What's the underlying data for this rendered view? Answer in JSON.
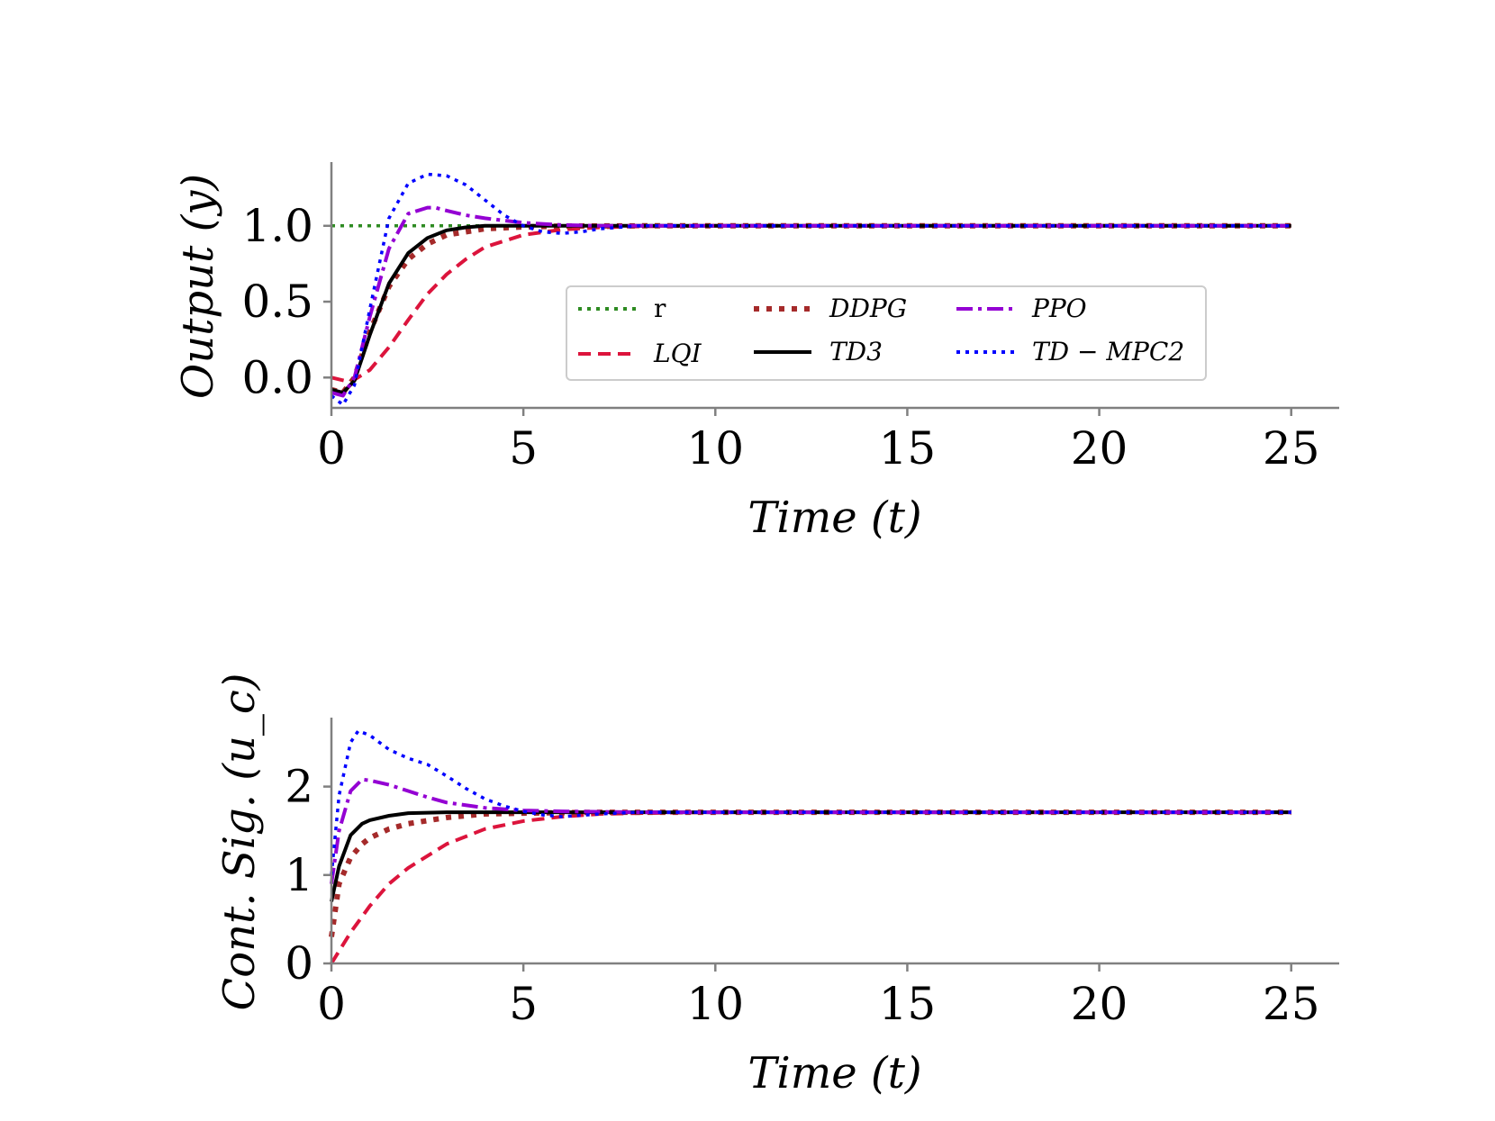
{
  "chart_data": [
    {
      "type": "line",
      "id": "output",
      "xlabel": "Time (t)",
      "ylabel": "Output (y)",
      "xlim": [
        0,
        26.25
      ],
      "ylim": [
        -0.2,
        1.42
      ],
      "xticks": [
        0,
        5,
        10,
        15,
        20,
        25
      ],
      "xtick_labels": [
        "0",
        "5",
        "10",
        "15",
        "20",
        "25"
      ],
      "yticks": [
        0.0,
        0.5,
        1.0
      ],
      "ytick_labels": [
        "0.0",
        "0.5",
        "1.0"
      ],
      "legend_position": "center-right",
      "legend_entries": [
        "r",
        "LQI",
        "DDPG",
        "TD3",
        "PPO",
        "TD − MPC2"
      ],
      "series": [
        {
          "name": "r",
          "color": "#2e8b22",
          "style": "dotted",
          "x": [
            0,
            25
          ],
          "y": [
            1.0,
            1.0
          ]
        },
        {
          "name": "LQI",
          "color": "#dc143c",
          "style": "dashed",
          "x": [
            0,
            0.5,
            1,
            1.5,
            2,
            2.5,
            3,
            3.5,
            4,
            5,
            6,
            7,
            8,
            10,
            15,
            25
          ],
          "y": [
            0.0,
            -0.03,
            0.05,
            0.2,
            0.38,
            0.55,
            0.68,
            0.78,
            0.86,
            0.94,
            0.975,
            0.99,
            0.996,
            1.0,
            1.0,
            1.0
          ]
        },
        {
          "name": "DDPG",
          "color": "#a52a2a",
          "style": "dotted-thick",
          "x": [
            0,
            0.3,
            0.6,
            1,
            1.5,
            2,
            2.5,
            3,
            4,
            5,
            6,
            8,
            10,
            25
          ],
          "y": [
            -0.08,
            -0.1,
            0.0,
            0.3,
            0.6,
            0.78,
            0.88,
            0.94,
            0.98,
            0.993,
            0.998,
            1.0,
            1.0,
            1.0
          ]
        },
        {
          "name": "TD3",
          "color": "#000000",
          "style": "solid",
          "x": [
            0,
            0.3,
            0.6,
            1,
            1.5,
            2,
            2.5,
            3,
            3.5,
            4,
            5,
            6,
            10,
            25
          ],
          "y": [
            -0.08,
            -0.1,
            -0.02,
            0.28,
            0.62,
            0.82,
            0.92,
            0.97,
            0.99,
            1.0,
            1.0,
            1.0,
            1.0,
            1.0
          ]
        },
        {
          "name": "PPO",
          "color": "#9400d3",
          "style": "dashdot",
          "x": [
            0,
            0.3,
            0.6,
            1,
            1.5,
            2,
            2.5,
            2.7,
            3,
            3.5,
            4,
            5,
            6,
            7,
            10,
            25
          ],
          "y": [
            -0.1,
            -0.12,
            0.0,
            0.4,
            0.85,
            1.08,
            1.12,
            1.12,
            1.1,
            1.07,
            1.05,
            1.02,
            1.005,
            1.0,
            1.0,
            1.0
          ]
        },
        {
          "name": "TD − MPC2",
          "color": "#0000ff",
          "style": "dotted",
          "x": [
            0,
            0.3,
            0.6,
            1,
            1.5,
            2,
            2.5,
            3,
            3.5,
            4,
            4.5,
            5,
            5.5,
            6,
            6.5,
            7,
            8,
            10,
            25
          ],
          "y": [
            -0.12,
            -0.18,
            -0.05,
            0.45,
            1.05,
            1.28,
            1.34,
            1.33,
            1.27,
            1.17,
            1.07,
            1.0,
            0.96,
            0.95,
            0.96,
            0.98,
            1.0,
            1.0,
            1.0
          ]
        }
      ]
    },
    {
      "type": "line",
      "id": "control",
      "xlabel": "Time (t)",
      "ylabel": "Cont. Sig. (u_c)",
      "xlim": [
        0,
        26.25
      ],
      "ylim": [
        0,
        2.78
      ],
      "xticks": [
        0,
        5,
        10,
        15,
        20,
        25
      ],
      "xtick_labels": [
        "0",
        "5",
        "10",
        "15",
        "20",
        "25"
      ],
      "yticks": [
        0,
        1,
        2
      ],
      "ytick_labels": [
        "0",
        "1",
        "2"
      ],
      "series": [
        {
          "name": "LQI",
          "color": "#dc143c",
          "style": "dashed",
          "x": [
            0,
            0.5,
            1,
            1.5,
            2,
            3,
            4,
            5,
            6,
            7,
            8,
            10,
            25
          ],
          "y": [
            0.0,
            0.35,
            0.65,
            0.9,
            1.08,
            1.35,
            1.52,
            1.61,
            1.66,
            1.69,
            1.7,
            1.71,
            1.71
          ]
        },
        {
          "name": "DDPG",
          "color": "#a52a2a",
          "style": "dotted-thick",
          "x": [
            0,
            0.2,
            0.5,
            0.8,
            1,
            1.5,
            2,
            3,
            4,
            5,
            7,
            10,
            25
          ],
          "y": [
            0.3,
            0.9,
            1.2,
            1.35,
            1.42,
            1.52,
            1.58,
            1.65,
            1.69,
            1.7,
            1.71,
            1.71,
            1.71
          ]
        },
        {
          "name": "TD3",
          "color": "#000000",
          "style": "solid",
          "x": [
            0,
            0.2,
            0.5,
            0.8,
            1,
            1.5,
            2,
            3,
            4,
            5,
            10,
            25
          ],
          "y": [
            0.7,
            1.1,
            1.45,
            1.58,
            1.62,
            1.67,
            1.7,
            1.71,
            1.71,
            1.71,
            1.71,
            1.71
          ]
        },
        {
          "name": "PPO",
          "color": "#9400d3",
          "style": "dashdot",
          "x": [
            0,
            0.2,
            0.5,
            0.8,
            1,
            1.5,
            2,
            2.5,
            3,
            4,
            5,
            6,
            8,
            10,
            25
          ],
          "y": [
            0.9,
            1.5,
            1.95,
            2.08,
            2.07,
            2.02,
            1.95,
            1.88,
            1.82,
            1.76,
            1.73,
            1.72,
            1.71,
            1.71,
            1.71
          ]
        },
        {
          "name": "TD − MPC2",
          "color": "#0000ff",
          "style": "dotted",
          "x": [
            0,
            0.2,
            0.5,
            0.7,
            1,
            1.5,
            2,
            2.5,
            3,
            3.5,
            4,
            4.5,
            5,
            5.5,
            6,
            7,
            8,
            10,
            25
          ],
          "y": [
            1.0,
            1.9,
            2.5,
            2.63,
            2.58,
            2.42,
            2.32,
            2.25,
            2.12,
            1.98,
            1.86,
            1.78,
            1.72,
            1.68,
            1.66,
            1.69,
            1.71,
            1.71,
            1.71
          ]
        }
      ]
    }
  ]
}
